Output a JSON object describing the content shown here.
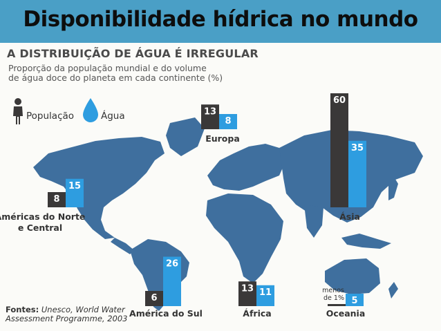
{
  "slide_title": "Disponibilidade hídrica no mundo",
  "colors": {
    "topbar": "#4a9fc6",
    "population": "#3a3838",
    "water": "#2e9de0",
    "map": "#3f6f9e"
  },
  "legend": {
    "population_icon": "person-icon",
    "water_icon": "water-drop-icon"
  },
  "sources": {
    "prefix": "Fontes:",
    "text_line1": "Unesco, World Water",
    "text_line2": "Assessment Programme, 2003"
  },
  "chart_data": {
    "type": "bar",
    "title": "A DISTRIBUIÇÃO DE ÁGUA É IRREGULAR",
    "subtitle_line1": "Proporção da população mundial e do volume",
    "subtitle_line2": "de água doce do planeta em cada continente (%)",
    "unit": "%",
    "categories": [
      {
        "label_lines": [
          "Américas do Norte",
          "e Central"
        ],
        "population": 8,
        "water": 15
      },
      {
        "label_lines": [
          "Europa"
        ],
        "population": 13,
        "water": 8
      },
      {
        "label_lines": [
          "América do Sul"
        ],
        "population": 6,
        "water": 26
      },
      {
        "label_lines": [
          "África"
        ],
        "population": 13,
        "water": 11
      },
      {
        "label_lines": [
          "Ásia"
        ],
        "population": 60,
        "water": 35
      },
      {
        "label_lines": [
          "Oceania"
        ],
        "population_label": [
          "menos",
          "de 1%"
        ],
        "population": 0.5,
        "water": 5
      }
    ],
    "series": [
      {
        "name": "População",
        "key": "population"
      },
      {
        "name": "Água",
        "key": "water"
      }
    ]
  }
}
